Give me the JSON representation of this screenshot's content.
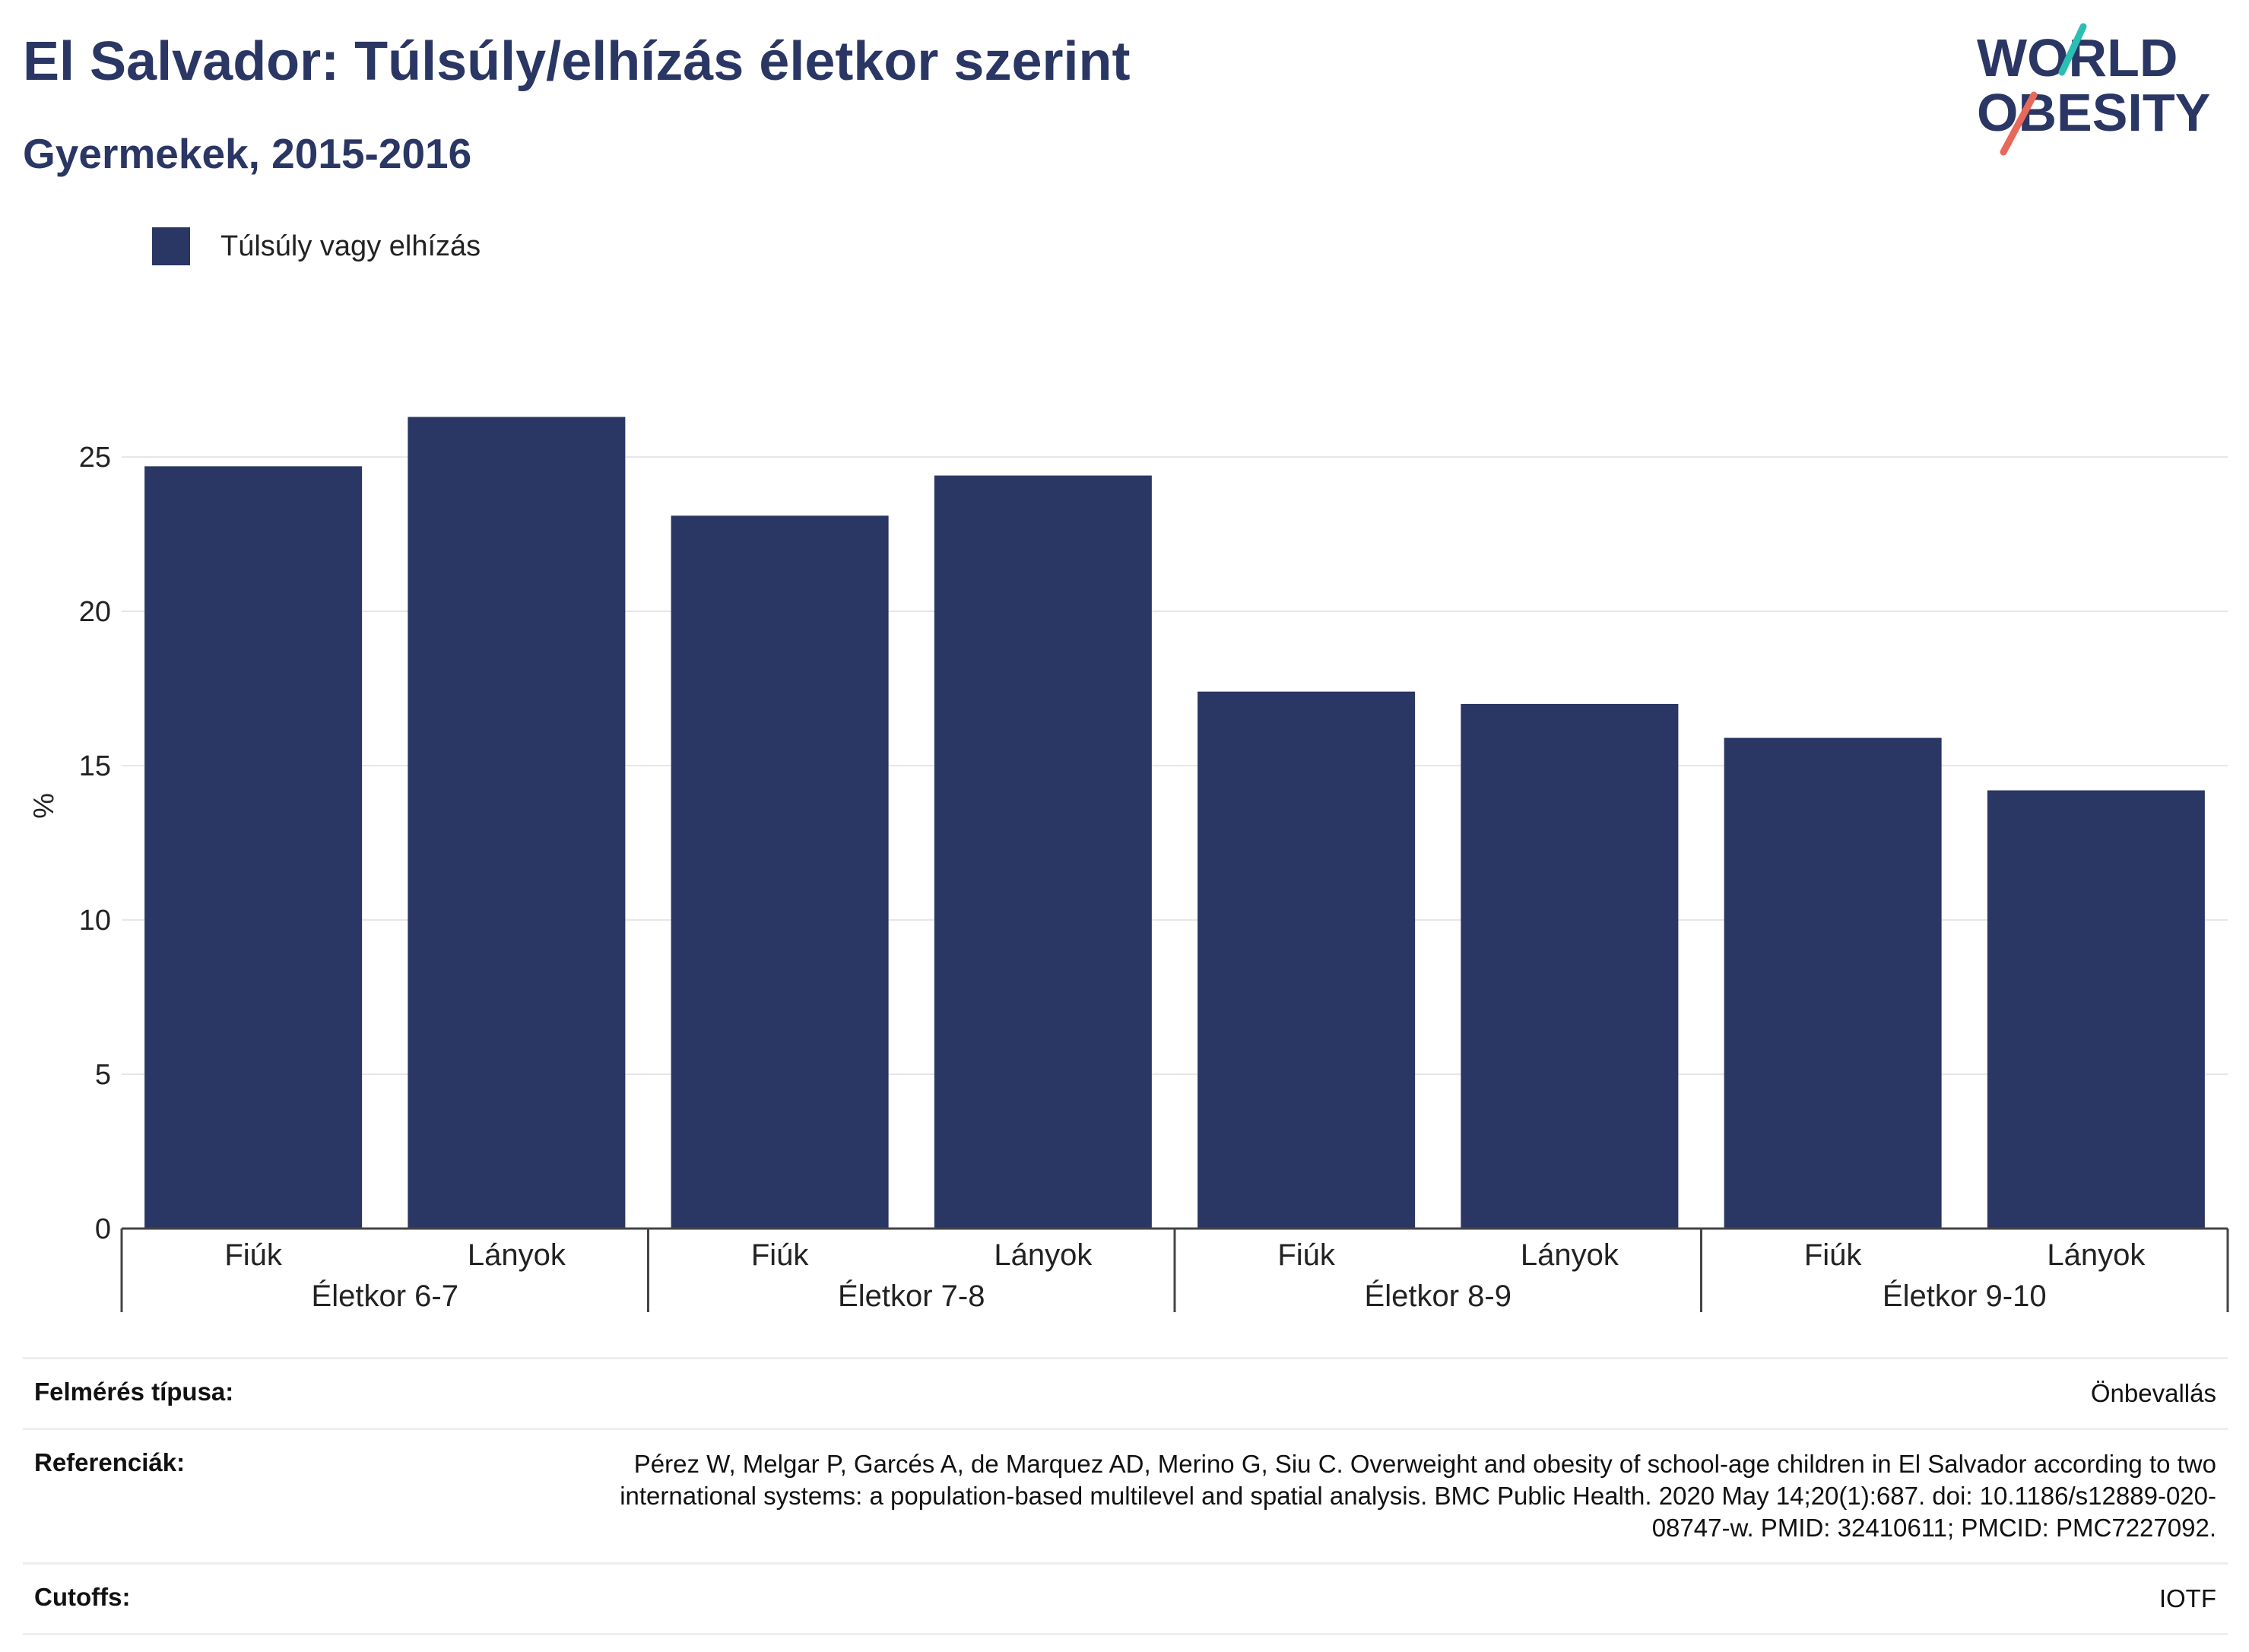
{
  "header": {
    "title": "El Salvador: Túlsúly/elhízás életkor szerint",
    "subtitle": "Gyermekek, 2015-2016"
  },
  "logo": {
    "line1": "WORLD",
    "line2": "OBESITY",
    "text_color": "#2a3663",
    "accent_teal": "#2bbfb3",
    "accent_coral": "#e8685a"
  },
  "legend": {
    "label": "Túlsúly vagy elhízás",
    "color": "#2a3663"
  },
  "chart_data": {
    "type": "bar",
    "ylabel": "%",
    "ylim": [
      0,
      27
    ],
    "yticks": [
      0,
      5,
      10,
      15,
      20,
      25
    ],
    "grid": true,
    "legend_position": "top-left",
    "bar_color": "#2a3663",
    "groups": [
      {
        "label": "Életkor 6-7",
        "categories": [
          "Fiúk",
          "Lányok"
        ],
        "values": [
          24.7,
          26.3
        ]
      },
      {
        "label": "Életkor 7-8",
        "categories": [
          "Fiúk",
          "Lányok"
        ],
        "values": [
          23.1,
          24.4
        ]
      },
      {
        "label": "Életkor 8-9",
        "categories": [
          "Fiúk",
          "Lányok"
        ],
        "values": [
          17.4,
          17.0
        ]
      },
      {
        "label": "Életkor 9-10",
        "categories": [
          "Fiúk",
          "Lányok"
        ],
        "values": [
          15.9,
          14.2
        ]
      }
    ],
    "series": [
      {
        "name": "Túlsúly vagy elhízás",
        "values": [
          24.7,
          26.3,
          23.1,
          24.4,
          17.4,
          17.0,
          15.9,
          14.2
        ]
      }
    ]
  },
  "info": {
    "survey_key": "Felmérés típusa:",
    "survey_value": "Önbevallás",
    "ref_key": "Referenciák:",
    "ref_value": "Pérez W, Melgar P, Garcés A, de Marquez AD, Merino G, Siu C. Overweight and obesity of school-age children in El Salvador according to two international systems: a population-based multilevel and spatial analysis. BMC Public Health. 2020 May 14;20(1):687. doi: 10.1186/s12889-020-08747-w. PMID: 32410611; PMCID: PMC7227092.",
    "cutoff_key": "Cutoffs:",
    "cutoff_value": "IOTF"
  }
}
